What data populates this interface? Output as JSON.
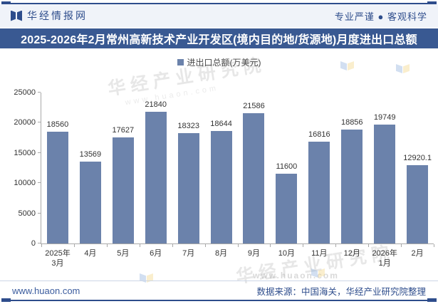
{
  "header": {
    "brand": "华经情报网",
    "slogan": "专业严谨 ● 客观科学"
  },
  "title": "2025-2026年2月常州高新技术产业开发区(境内目的地/货源地)月度进出口总额",
  "chart_data": {
    "type": "bar",
    "title": "2025-2026年2月常州高新技术产业开发区(境内目的地/货源地)月度进出口总额",
    "legend_entries": [
      "进出口总额(万美元)"
    ],
    "legend_position": "top-center",
    "categories": [
      "2025年\n3月",
      "4月",
      "5月",
      "6月",
      "7月",
      "8月",
      "9月",
      "10月",
      "11月",
      "12月",
      "2026年\n1月",
      "2月"
    ],
    "values": [
      18560,
      13569,
      17627,
      21840,
      18323,
      18644,
      21586,
      11600,
      16816,
      18856,
      19749,
      12920.1
    ],
    "data_labels": [
      "18560",
      "13569",
      "17627",
      "21840",
      "18323",
      "18644",
      "21586",
      "11600",
      "16816",
      "18856",
      "19749",
      "12920.1"
    ],
    "xlabel": "",
    "ylabel": "",
    "ylim": [
      0,
      25000
    ],
    "yticks": [
      0,
      5000,
      10000,
      15000,
      20000,
      25000
    ],
    "grid": false,
    "bar_color": "#6b82ab"
  },
  "watermarks": {
    "diagonal_text": "华经产业研究院",
    "diagonal_sub": "www.huaon.com",
    "url_text": "www.huaon.com"
  },
  "footer": {
    "website": "www.huaon.com",
    "source": "数据来源：中国海关，华经产业研究院整理"
  },
  "colors": {
    "accent_navy": "#2e4d8c",
    "title_bar_bg": "#395992",
    "header_bg": "#f0f3f9",
    "bar": "#6b82ab",
    "axis_line": "#a9a9a9",
    "label_text": "#333333"
  }
}
